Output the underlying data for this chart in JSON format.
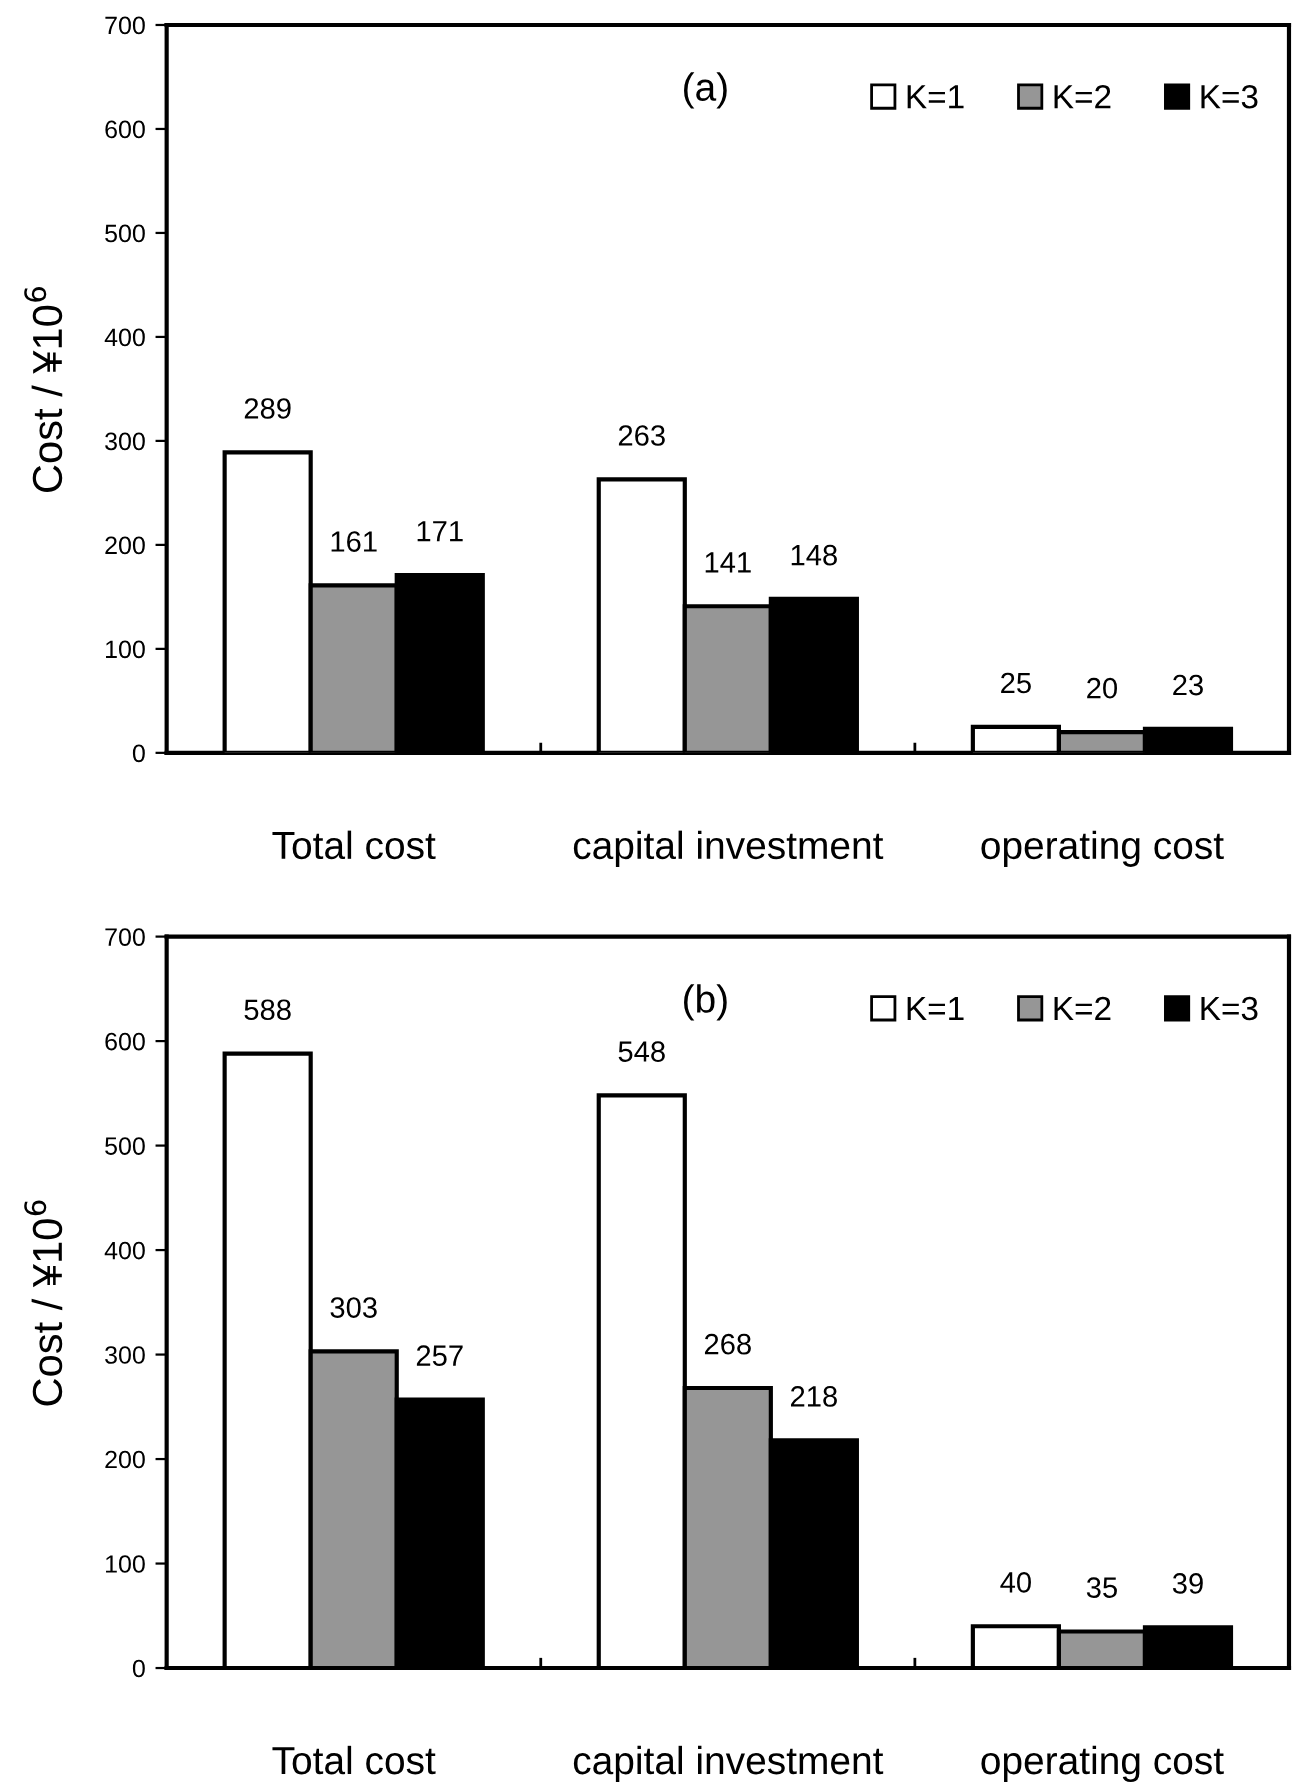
{
  "chart_data": [
    {
      "type": "bar",
      "title": "(a)",
      "ylabel": "Cost / ¥10$^{6}$",
      "categories": [
        "Total cost",
        "capital investment",
        "operating cost"
      ],
      "series": [
        {
          "name": "K=1",
          "color": "#ffffff",
          "values": [
            289,
            263,
            25
          ]
        },
        {
          "name": "K=2",
          "color": "#969696",
          "values": [
            161,
            141,
            20
          ]
        },
        {
          "name": "K=3",
          "color": "#000000",
          "values": [
            171,
            148,
            23
          ]
        }
      ],
      "ylim": [
        0,
        700
      ],
      "yticks": [
        0,
        100,
        200,
        300,
        400,
        500,
        600,
        700
      ],
      "data_labels": true,
      "legend": "top right",
      "grid": false
    },
    {
      "type": "bar",
      "title": "(b)",
      "ylabel": "Cost / ¥10$^{6}$",
      "categories": [
        "Total cost",
        "capital investment",
        "operating cost"
      ],
      "series": [
        {
          "name": "K=1",
          "color": "#ffffff",
          "values": [
            588,
            548,
            40
          ]
        },
        {
          "name": "K=2",
          "color": "#969696",
          "values": [
            303,
            268,
            35
          ]
        },
        {
          "name": "K=3",
          "color": "#000000",
          "values": [
            257,
            218,
            39
          ]
        }
      ],
      "ylim": [
        0,
        700
      ],
      "yticks": [
        0,
        100,
        200,
        300,
        400,
        500,
        600,
        700
      ],
      "data_labels": true,
      "legend": "top right",
      "grid": false
    }
  ]
}
